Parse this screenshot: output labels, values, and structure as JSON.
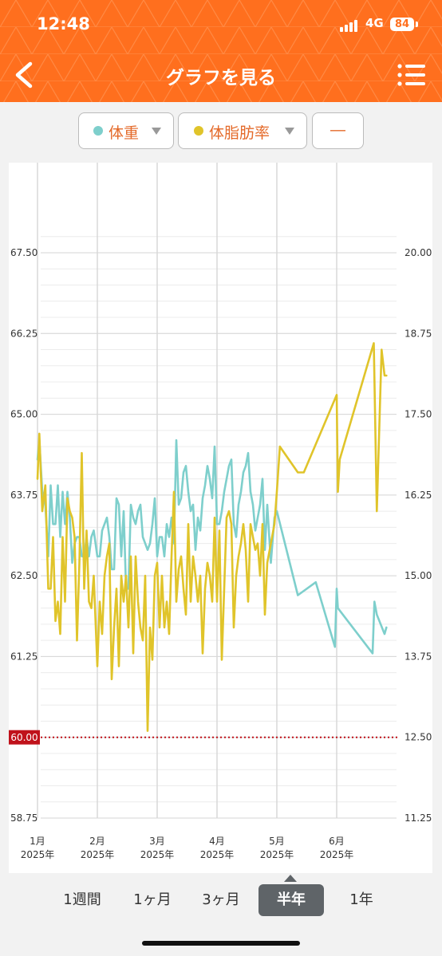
{
  "status_bar": {
    "time": "12:48",
    "network": "4G",
    "battery": "84"
  },
  "header": {
    "title": "グラフを見る"
  },
  "selectors": [
    {
      "label": "体重",
      "dot_color": "#7ecfcc"
    },
    {
      "label": "体脂肪率",
      "dot_color": "#e0c42a"
    },
    {
      "label": "―"
    }
  ],
  "colors": {
    "accent": "#ff6f1e",
    "weight": "#7ecfcc",
    "fat": "#e0c42a",
    "target": "#c0121b"
  },
  "chart_data": {
    "type": "line",
    "y_left": {
      "min": 58.75,
      "max": 67.5,
      "ticks": [
        "58.75",
        "60.00",
        "61.25",
        "62.50",
        "63.75",
        "65.00",
        "66.25",
        "67.50"
      ]
    },
    "y_right": {
      "min": 11.25,
      "max": 20.0,
      "ticks": [
        "11.25",
        "12.50",
        "13.75",
        "15.00",
        "16.25",
        "17.50",
        "18.75",
        "20.00"
      ]
    },
    "target_line": {
      "value": 60.0,
      "label": "60.00"
    },
    "x_ticks": [
      {
        "m": "1月",
        "y": "2025年",
        "pos": 0.0
      },
      {
        "m": "2月",
        "y": "2025年",
        "pos": 1.0
      },
      {
        "m": "3月",
        "y": "2025年",
        "pos": 2.0
      },
      {
        "m": "4月",
        "y": "2025年",
        "pos": 3.0
      },
      {
        "m": "5月",
        "y": "2025年",
        "pos": 4.0
      },
      {
        "m": "6月",
        "y": "2025年",
        "pos": 5.0
      }
    ],
    "series": [
      {
        "name": "体重",
        "axis": "left",
        "color": "#7ecfcc",
        "x": [
          0.0,
          0.03,
          0.08,
          0.13,
          0.18,
          0.22,
          0.26,
          0.3,
          0.34,
          0.38,
          0.42,
          0.46,
          0.5,
          0.54,
          0.58,
          0.62,
          0.66,
          0.7,
          0.74,
          0.78,
          0.82,
          0.86,
          0.9,
          0.94,
          1.0,
          1.04,
          1.08,
          1.12,
          1.16,
          1.2,
          1.24,
          1.28,
          1.32,
          1.36,
          1.4,
          1.44,
          1.48,
          1.52,
          1.56,
          1.6,
          1.64,
          1.68,
          1.72,
          1.76,
          1.8,
          1.84,
          1.88,
          1.92,
          1.96,
          2.0,
          2.04,
          2.08,
          2.12,
          2.16,
          2.2,
          2.24,
          2.28,
          2.32,
          2.36,
          2.4,
          2.44,
          2.48,
          2.52,
          2.56,
          2.6,
          2.64,
          2.68,
          2.72,
          2.76,
          2.8,
          2.84,
          2.88,
          2.92,
          2.96,
          3.0,
          3.04,
          3.08,
          3.12,
          3.16,
          3.2,
          3.24,
          3.28,
          3.32,
          3.36,
          3.4,
          3.44,
          3.48,
          3.52,
          3.56,
          3.6,
          3.64,
          3.68,
          3.72,
          3.76,
          3.8,
          3.84,
          3.9,
          3.96,
          4.0,
          4.35,
          4.65,
          4.97,
          5.0,
          5.02,
          5.6,
          5.63,
          5.67,
          5.8,
          5.83
        ],
        "y": [
          64.3,
          64.6,
          63.8,
          63.6,
          62.8,
          63.9,
          63.3,
          63.3,
          63.9,
          63.1,
          63.8,
          63.3,
          63.8,
          63.4,
          62.7,
          63.0,
          63.1,
          63.1,
          62.8,
          62.8,
          63.1,
          62.8,
          63.1,
          63.2,
          62.8,
          62.8,
          63.2,
          63.3,
          63.4,
          63.1,
          62.6,
          62.6,
          63.7,
          63.6,
          62.8,
          63.5,
          62.3,
          62.3,
          63.6,
          63.4,
          63.3,
          63.5,
          63.6,
          63.1,
          63.0,
          62.9,
          63.0,
          63.3,
          63.7,
          62.8,
          63.1,
          63.1,
          62.8,
          63.3,
          63.1,
          63.4,
          63.0,
          64.6,
          63.6,
          63.7,
          64.1,
          64.2,
          63.8,
          63.5,
          63.6,
          62.9,
          63.4,
          63.2,
          63.7,
          63.9,
          64.2,
          64.0,
          63.7,
          64.5,
          63.3,
          63.3,
          63.5,
          63.8,
          64.0,
          64.2,
          64.3,
          63.3,
          63.1,
          63.6,
          63.8,
          64.1,
          64.2,
          64.4,
          63.8,
          63.6,
          63.2,
          63.4,
          63.6,
          64.0,
          62.9,
          63.6,
          62.7,
          63.4,
          63.5,
          62.2,
          62.4,
          61.4,
          62.3,
          62.0,
          61.3,
          62.1,
          61.9,
          61.6,
          61.7
        ]
      },
      {
        "name": "体脂肪率",
        "axis": "right",
        "color": "#e0c42a",
        "x": [
          0.0,
          0.03,
          0.08,
          0.13,
          0.18,
          0.22,
          0.26,
          0.3,
          0.34,
          0.38,
          0.42,
          0.46,
          0.5,
          0.54,
          0.58,
          0.62,
          0.66,
          0.7,
          0.74,
          0.78,
          0.82,
          0.86,
          0.9,
          0.94,
          1.0,
          1.04,
          1.08,
          1.12,
          1.16,
          1.2,
          1.24,
          1.28,
          1.32,
          1.36,
          1.4,
          1.44,
          1.48,
          1.52,
          1.56,
          1.6,
          1.64,
          1.68,
          1.72,
          1.76,
          1.8,
          1.84,
          1.88,
          1.92,
          1.96,
          2.0,
          2.04,
          2.08,
          2.12,
          2.16,
          2.2,
          2.24,
          2.28,
          2.32,
          2.36,
          2.4,
          2.44,
          2.48,
          2.52,
          2.56,
          2.6,
          2.64,
          2.68,
          2.72,
          2.76,
          2.8,
          2.84,
          2.88,
          2.92,
          2.96,
          3.0,
          3.04,
          3.08,
          3.12,
          3.16,
          3.2,
          3.24,
          3.28,
          3.32,
          3.36,
          3.4,
          3.44,
          3.48,
          3.52,
          3.56,
          3.6,
          3.64,
          3.68,
          3.72,
          3.76,
          3.8,
          3.84,
          3.9,
          3.96,
          4.0,
          4.05,
          4.35,
          4.45,
          5.0,
          5.02,
          5.05,
          5.62,
          5.67,
          5.75,
          5.8,
          5.83
        ],
        "y": [
          16.5,
          17.2,
          16.0,
          16.4,
          14.8,
          14.8,
          15.6,
          14.3,
          14.6,
          14.1,
          15.6,
          14.6,
          16.2,
          16.0,
          15.9,
          15.6,
          14.0,
          15.2,
          16.9,
          14.8,
          15.7,
          14.6,
          14.5,
          15.0,
          13.6,
          14.6,
          14.1,
          15.0,
          15.3,
          15.5,
          13.4,
          14.2,
          14.8,
          13.6,
          15.0,
          14.6,
          15.0,
          14.2,
          15.3,
          13.8,
          15.3,
          14.6,
          14.2,
          14.0,
          15.0,
          12.6,
          14.2,
          13.7,
          15.0,
          15.2,
          14.2,
          15.0,
          14.2,
          14.6,
          14.1,
          15.3,
          16.3,
          14.6,
          15.1,
          15.3,
          14.8,
          14.4,
          15.8,
          14.6,
          15.3,
          15.0,
          14.6,
          15.0,
          13.8,
          14.8,
          15.2,
          15.0,
          14.6,
          15.9,
          14.6,
          15.7,
          13.7,
          14.8,
          15.9,
          16.0,
          15.8,
          14.2,
          15.0,
          15.3,
          15.5,
          15.8,
          15.4,
          14.6,
          15.8,
          15.6,
          15.4,
          15.5,
          15.0,
          15.8,
          14.4,
          15.2,
          15.5,
          15.8,
          16.3,
          17.0,
          16.6,
          16.6,
          17.8,
          16.3,
          16.8,
          18.6,
          16.0,
          18.5,
          18.1,
          18.1
        ]
      }
    ]
  },
  "periods": [
    {
      "label": "1週間",
      "active": false
    },
    {
      "label": "1ヶ月",
      "active": false
    },
    {
      "label": "3ヶ月",
      "active": false
    },
    {
      "label": "半年",
      "active": true
    },
    {
      "label": "1年",
      "active": false
    }
  ]
}
